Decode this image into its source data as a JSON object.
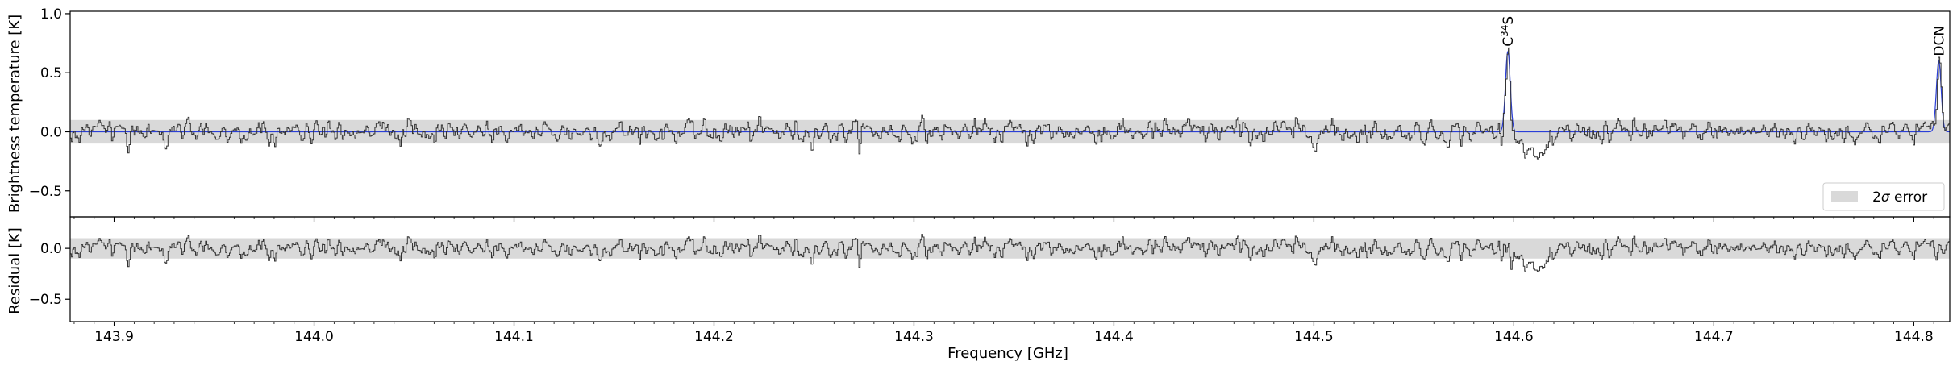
{
  "chart_data": {
    "type": "line",
    "x_range": [
      143.878,
      144.818
    ],
    "x_ticks": [
      143.9,
      144.0,
      144.1,
      144.2,
      144.3,
      144.4,
      144.5,
      144.6,
      144.7,
      144.8
    ],
    "x_tick_labels": [
      "143.9",
      "144.0",
      "144.1",
      "144.2",
      "144.3",
      "144.4",
      "144.5",
      "144.6",
      "144.7",
      "144.8"
    ],
    "xlabel": "Frequency [GHz]",
    "colors": {
      "observed": "#333333",
      "model": "#2b3fd8",
      "error_band": "#d9d9d9"
    },
    "panels": [
      {
        "id": "spectrum",
        "ylabel": "Brightness temperature [K]",
        "ylim": [
          -0.72,
          1.02
        ],
        "y_ticks": [
          1.0,
          0.5,
          0.0,
          -0.5
        ],
        "y_tick_labels": [
          "1.0",
          "0.5",
          "0.0",
          "−0.5"
        ],
        "error_band": [
          -0.1,
          0.1
        ],
        "noise_sigma": 0.05,
        "absorption": {
          "center": 144.612,
          "width": 0.006,
          "depth": -0.22
        },
        "series": [
          {
            "role": "observed",
            "style": "step"
          },
          {
            "role": "model",
            "style": "line"
          }
        ],
        "lines": [
          {
            "frequency": 144.597,
            "peak": 0.68,
            "width": 0.0012,
            "label_base": "C",
            "label_sup": "34",
            "label_tail": "S"
          },
          {
            "frequency": 144.8125,
            "peak": 0.6,
            "width": 0.0012,
            "label_base": "DCN",
            "label_sup": "",
            "label_tail": ""
          }
        ],
        "legend": {
          "label_prefix": "2",
          "label_symbol": "σ",
          "label_suffix": " error",
          "position": "lower-right"
        }
      },
      {
        "id": "residual",
        "ylabel": "Residual [K]",
        "ylim": [
          -0.72,
          0.31
        ],
        "y_ticks": [
          0.0,
          -0.5
        ],
        "y_tick_labels": [
          "0.0",
          "−0.5"
        ],
        "error_band": [
          -0.1,
          0.1
        ],
        "noise_sigma": 0.05,
        "absorption": {
          "center": 144.612,
          "width": 0.006,
          "depth": -0.22
        }
      }
    ]
  }
}
